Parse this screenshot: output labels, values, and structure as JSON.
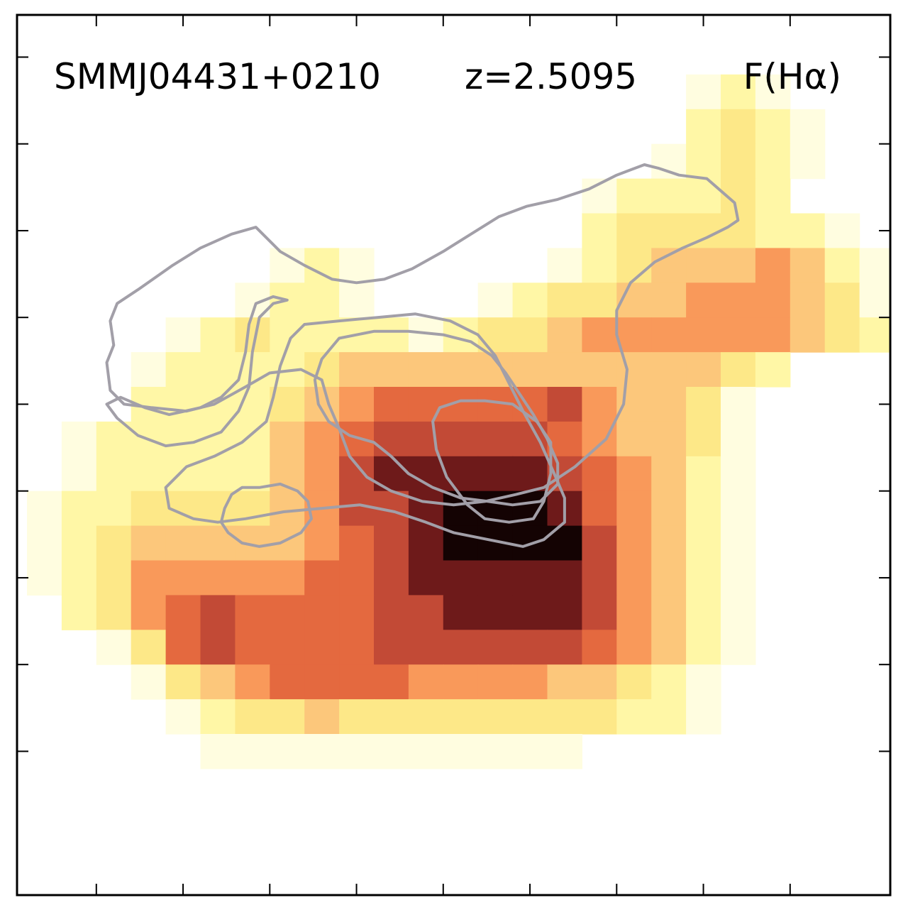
{
  "chart_data": {
    "type": "heatmap",
    "title": "",
    "annotations": [
      {
        "name": "object-name",
        "text": "SMMJ04431+0210"
      },
      {
        "name": "redshift",
        "text": "z=2.5095"
      },
      {
        "name": "quantity",
        "text": "F(Hα)"
      }
    ],
    "xlabel": "",
    "ylabel": "",
    "grid": false,
    "colormap": "afmhot_r",
    "contour_color": "#a29fa8",
    "pixel_grid": {
      "cols": 25,
      "rows": 21
    },
    "value_range": [
      0,
      9
    ],
    "rows": [
      "0000000000000000000000000",
      "0000000000000000000121000",
      "0000000000000000000232100",
      "0000000000000000001232100",
      "0000000000000000122232000",
      "0000000000000000233332210",
      "0000000121000001234445421",
      "0000001221000123344555431",
      "0000123222212334555555432",
      "0001222234444444444432000",
      "0002222345666667544310000",
      "0122222456777776544310000",
      "0122222457888887654210000",
      "1223333457789998654210000",
      "1234444456789999754210000",
      "1235555566788888754210000",
      "0235676666778888754210000",
      "0013676666777777654210000",
      "0001345666655554432100000",
      "0000123343333333322100000",
      "0000011111111111000000000"
    ],
    "contours": [
      {
        "level": 1,
        "points": [
          [
            6.6,
            5.4
          ],
          [
            5.9,
            5.6
          ],
          [
            5.0,
            6.0
          ],
          [
            4.2,
            6.5
          ],
          [
            3.2,
            7.2
          ],
          [
            2.6,
            7.6
          ],
          [
            2.4,
            8.1
          ],
          [
            2.5,
            8.8
          ],
          [
            2.3,
            9.3
          ],
          [
            2.4,
            10.1
          ],
          [
            2.8,
            10.5
          ],
          [
            3.6,
            10.6
          ],
          [
            4.6,
            10.7
          ],
          [
            5.4,
            10.5
          ],
          [
            6.3,
            10.0
          ],
          [
            7.0,
            9.6
          ],
          [
            7.9,
            9.5
          ],
          [
            8.5,
            9.8
          ],
          [
            8.7,
            10.5
          ],
          [
            9.0,
            11.2
          ],
          [
            9.3,
            12.0
          ],
          [
            9.8,
            12.6
          ],
          [
            10.5,
            13.0
          ],
          [
            11.4,
            13.3
          ],
          [
            12.3,
            13.4
          ],
          [
            13.2,
            13.3
          ],
          [
            14.1,
            13.1
          ],
          [
            14.9,
            12.9
          ],
          [
            15.8,
            12.3
          ],
          [
            16.7,
            11.5
          ],
          [
            17.2,
            10.5
          ],
          [
            17.3,
            9.5
          ],
          [
            17.0,
            8.5
          ],
          [
            17.0,
            7.8
          ],
          [
            17.4,
            7.0
          ],
          [
            18.1,
            6.4
          ],
          [
            18.9,
            6.0
          ],
          [
            19.6,
            5.7
          ],
          [
            20.2,
            5.4
          ],
          [
            20.5,
            5.2
          ],
          [
            20.4,
            4.7
          ],
          [
            19.6,
            4.0
          ],
          [
            18.8,
            3.9
          ],
          [
            18.2,
            3.7
          ],
          [
            17.8,
            3.6
          ],
          [
            17.0,
            3.9
          ],
          [
            16.2,
            4.3
          ],
          [
            15.3,
            4.6
          ],
          [
            14.4,
            4.8
          ],
          [
            13.6,
            5.1
          ],
          [
            12.8,
            5.6
          ],
          [
            12.0,
            6.1
          ],
          [
            11.1,
            6.6
          ],
          [
            10.3,
            6.9
          ],
          [
            9.5,
            7.0
          ],
          [
            8.8,
            6.9
          ],
          [
            8.0,
            6.5
          ],
          [
            7.3,
            6.1
          ],
          [
            6.6,
            5.4
          ]
        ]
      },
      {
        "level": 2,
        "points": [
          [
            7.5,
            7.5
          ],
          [
            7.1,
            7.6
          ],
          [
            6.7,
            8.0
          ],
          [
            6.5,
            9.0
          ],
          [
            6.4,
            10.0
          ],
          [
            6.1,
            10.7
          ],
          [
            5.6,
            11.3
          ],
          [
            4.8,
            11.6
          ],
          [
            4.0,
            11.7
          ],
          [
            3.2,
            11.4
          ],
          [
            2.6,
            10.9
          ],
          [
            2.3,
            10.5
          ],
          [
            2.7,
            10.3
          ],
          [
            3.4,
            10.6
          ],
          [
            4.1,
            10.8
          ],
          [
            5.0,
            10.6
          ],
          [
            5.6,
            10.3
          ],
          [
            6.1,
            9.8
          ],
          [
            6.3,
            9.0
          ],
          [
            6.4,
            8.2
          ],
          [
            6.6,
            7.6
          ],
          [
            7.1,
            7.4
          ],
          [
            7.5,
            7.5
          ]
        ]
      },
      {
        "level": 3,
        "points": [
          [
            9.0,
            8.1
          ],
          [
            8.0,
            8.2
          ],
          [
            7.6,
            8.6
          ],
          [
            7.3,
            9.4
          ],
          [
            7.1,
            10.3
          ],
          [
            6.9,
            11.0
          ],
          [
            6.2,
            11.6
          ],
          [
            5.4,
            12.0
          ],
          [
            4.6,
            12.3
          ],
          [
            4.0,
            12.9
          ],
          [
            4.1,
            13.5
          ],
          [
            4.8,
            13.8
          ],
          [
            5.5,
            13.9
          ],
          [
            6.3,
            13.8
          ],
          [
            7.4,
            13.6
          ],
          [
            8.5,
            13.5
          ],
          [
            9.6,
            13.4
          ],
          [
            10.6,
            13.6
          ],
          [
            11.5,
            13.9
          ],
          [
            12.3,
            14.2
          ],
          [
            13.3,
            14.4
          ],
          [
            14.3,
            14.6
          ],
          [
            14.9,
            14.4
          ],
          [
            15.5,
            13.9
          ],
          [
            15.5,
            13.2
          ],
          [
            15.2,
            12.5
          ],
          [
            14.8,
            11.6
          ],
          [
            14.3,
            10.7
          ],
          [
            13.9,
            9.9
          ],
          [
            13.5,
            9.1
          ],
          [
            13.0,
            8.5
          ],
          [
            12.2,
            8.1
          ],
          [
            11.2,
            7.9
          ],
          [
            10.1,
            8.0
          ],
          [
            9.0,
            8.1
          ]
        ]
      },
      {
        "level": 4,
        "points": [
          [
            10.0,
            8.4
          ],
          [
            9.0,
            8.6
          ],
          [
            8.5,
            9.2
          ],
          [
            8.3,
            9.8
          ],
          [
            8.4,
            10.5
          ],
          [
            8.7,
            11.0
          ],
          [
            9.3,
            11.4
          ],
          [
            10.0,
            11.6
          ],
          [
            10.5,
            12.0
          ],
          [
            11.0,
            12.5
          ],
          [
            11.7,
            12.9
          ],
          [
            12.5,
            13.2
          ],
          [
            13.3,
            13.3
          ],
          [
            14.0,
            13.4
          ],
          [
            14.8,
            13.3
          ],
          [
            15.3,
            12.8
          ],
          [
            15.3,
            12.2
          ],
          [
            15.0,
            11.5
          ],
          [
            14.6,
            10.8
          ],
          [
            14.2,
            10.2
          ],
          [
            13.8,
            9.6
          ],
          [
            13.4,
            9.1
          ],
          [
            12.8,
            8.7
          ],
          [
            12.0,
            8.5
          ],
          [
            11.0,
            8.4
          ],
          [
            10.0,
            8.4
          ]
        ]
      },
      {
        "level": 5,
        "points": [
          [
            6.7,
            12.9
          ],
          [
            6.2,
            12.9
          ],
          [
            5.9,
            13.1
          ],
          [
            5.7,
            13.5
          ],
          [
            5.6,
            13.9
          ],
          [
            5.8,
            14.2
          ],
          [
            6.2,
            14.5
          ],
          [
            6.7,
            14.6
          ],
          [
            7.3,
            14.5
          ],
          [
            7.9,
            14.2
          ],
          [
            8.2,
            13.8
          ],
          [
            8.1,
            13.3
          ],
          [
            7.8,
            13.0
          ],
          [
            7.3,
            12.8
          ],
          [
            6.7,
            12.9
          ]
        ]
      },
      {
        "level": 6,
        "points": [
          [
            11.9,
            10.6
          ],
          [
            12.5,
            10.4
          ],
          [
            13.2,
            10.4
          ],
          [
            14.0,
            10.5
          ],
          [
            14.7,
            11.0
          ],
          [
            15.1,
            11.6
          ],
          [
            15.1,
            12.5
          ],
          [
            14.9,
            13.3
          ],
          [
            14.6,
            13.8
          ],
          [
            13.9,
            13.9
          ],
          [
            13.2,
            13.8
          ],
          [
            12.7,
            13.4
          ],
          [
            12.1,
            12.6
          ],
          [
            11.8,
            11.8
          ],
          [
            11.7,
            11.0
          ],
          [
            11.9,
            10.6
          ]
        ]
      }
    ],
    "x_ticks": [
      2,
      4.5,
      7,
      9.5,
      12,
      14.5,
      17,
      19.5,
      22
    ],
    "y_ticks": [
      0.5,
      3,
      5.5,
      8,
      10.5,
      13,
      15.5,
      18,
      20.5
    ],
    "xlim": [
      0,
      24
    ],
    "ylim": [
      0,
      22.5
    ]
  }
}
